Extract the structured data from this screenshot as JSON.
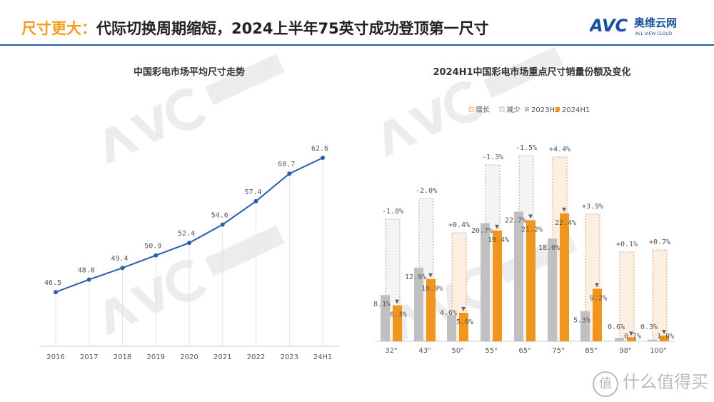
{
  "header": {
    "title_highlight": "尺寸更大：",
    "title_rest": "代际切换周期缩短，2024上半年75英寸成功登顶第一尺寸",
    "logo_text": "AVC",
    "logo_cn": "奥维云网",
    "logo_en": "ALL VIEW CLOUD",
    "brand_color": "#1a4fa0"
  },
  "watermark": {
    "badge": "值",
    "text": "什么值得买"
  },
  "chart_data": [
    {
      "type": "line",
      "title": "中国彩电市场平均尺寸走势",
      "categories": [
        "2016",
        "2017",
        "2018",
        "2019",
        "2020",
        "2021",
        "2022",
        "2023",
        "24H1"
      ],
      "values": [
        46.5,
        48.0,
        49.4,
        50.9,
        52.4,
        54.6,
        57.4,
        60.7,
        62.6
      ],
      "labels": [
        "46.5",
        "48.0",
        "49.4",
        "50.9",
        "52.4",
        "54.6",
        "57.4",
        "60.7",
        "62.6"
      ],
      "ylim": [
        40,
        64
      ],
      "grid": "vertical",
      "color": "#2a5db0"
    },
    {
      "type": "bar",
      "title": "2024H1中国彩电市场重点尺寸销量份额及变化",
      "legend": [
        "增长",
        "减少",
        "2023H1",
        "2024H1"
      ],
      "legend_placement": "top",
      "categories": [
        "32\"",
        "43\"",
        "50\"",
        "55\"",
        "65\"",
        "75\"",
        "85\"",
        "98\"",
        "100\""
      ],
      "series": [
        {
          "name": "2023H1",
          "values": [
            8.1,
            12.9,
            4.6,
            20.7,
            22.7,
            18.0,
            5.3,
            0.6,
            0.3
          ],
          "labels": [
            "8.1%",
            "12.9%",
            "4.6%",
            "20.7%",
            "22.7%",
            "18.0%",
            "5.3%",
            "0.6%",
            "0.3%"
          ],
          "color": "#c0c0c0"
        },
        {
          "name": "2024H1",
          "values": [
            6.3,
            10.9,
            5.0,
            19.4,
            21.2,
            22.4,
            9.2,
            0.7,
            1.0
          ],
          "labels": [
            "6.3%",
            "10.9%",
            "5.0%",
            "19.4%",
            "21.2%",
            "22.4%",
            "9.2%",
            "0.7%",
            "1.0%"
          ],
          "color": "#f0961e"
        }
      ],
      "change": [
        "-1.8%",
        "-2.0%",
        "+0.4%",
        "-1.3%",
        "-1.5%",
        "+4.4%",
        "+3.9%",
        "+0.1%",
        "+0.7%"
      ],
      "colors": {
        "increase": "#fdeee2",
        "decrease": "#f4f4f4"
      }
    }
  ]
}
